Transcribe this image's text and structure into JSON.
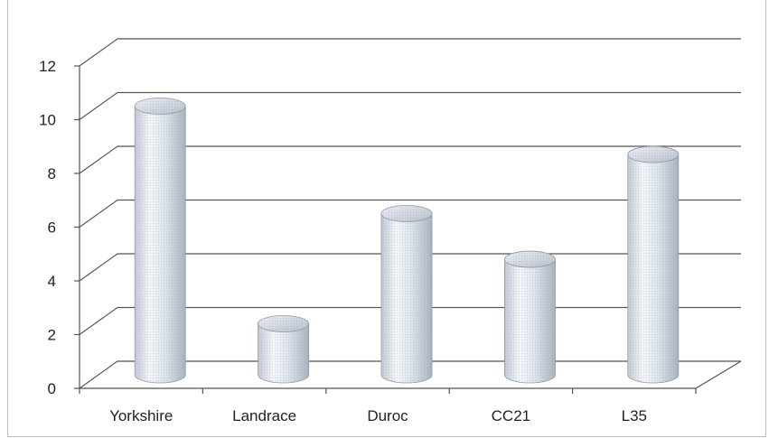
{
  "chart_data": {
    "type": "bar",
    "style": "3d-cylinder",
    "categories": [
      "Yorkshire",
      "Landrace",
      "Duroc",
      "CC21",
      "L35"
    ],
    "values": [
      10.0,
      1.9,
      6.0,
      4.3,
      8.2
    ],
    "title": "",
    "xlabel": "",
    "ylabel": "",
    "ylim": [
      0,
      12
    ],
    "yticks": [
      "0",
      "2",
      "4",
      "6",
      "8",
      "10",
      "12"
    ],
    "grid": true,
    "legend": "none",
    "colors": {
      "bar_fill": "#dfe6f0",
      "bar_shade": "#9aa4b2",
      "grid": "#555555",
      "axis": "#555555"
    }
  }
}
